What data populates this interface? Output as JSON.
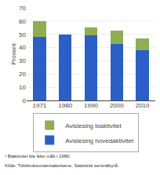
{
  "chart_data": {
    "type": "bar",
    "stacked": true,
    "categories": [
      "1971",
      "1980",
      "1990",
      "2000",
      "2010"
    ],
    "series": [
      {
        "name": "Avislesing hovedaktivitet",
        "color": "#2b5fc7",
        "values": [
          48,
          50,
          49,
          43,
          38
        ]
      },
      {
        "name": "Avislesing biaktivitet",
        "color": "#8fad52",
        "values": [
          12,
          0,
          6,
          10,
          9
        ]
      }
    ],
    "ylabel": "Prosent",
    "ylim": [
      0,
      70
    ],
    "yticks": [
      0,
      10,
      20,
      30,
      40,
      50,
      60,
      70
    ],
    "grid": true,
    "legend": "bottom",
    "annotations": [
      "¹ Biaktivitet ble ikke målt i 1980.",
      "Kilde: Tidsbruksundersøkelsene, Statistisk sentralbyrå."
    ]
  }
}
